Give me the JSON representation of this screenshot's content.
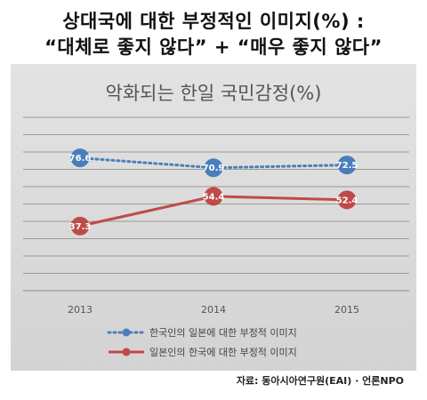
{
  "header": {
    "line1": "상대국에 대한 부정적인 이미지(%) :",
    "line2": "“대체로 좋지 않다” + “매우 좋지 않다”"
  },
  "source": "자료: 동아시아연구원(EAI) · 언론NPO",
  "chart_data": {
    "type": "line",
    "title": "악화되는 한일 국민감정(%)",
    "categories": [
      "2013",
      "2014",
      "2015"
    ],
    "series": [
      {
        "name": "한국인의 일본에 대한 부정적 이미지",
        "values": [
          76.6,
          70.9,
          72.5
        ],
        "color": "#4a7ebb",
        "style": "dotted"
      },
      {
        "name": "일본인의 한국에 대한 부정적 이미지",
        "values": [
          37.3,
          54.4,
          52.4
        ],
        "color": "#be4b48",
        "style": "solid"
      }
    ],
    "ylim": [
      0,
      100
    ],
    "grid": true,
    "legend": "bottom"
  }
}
